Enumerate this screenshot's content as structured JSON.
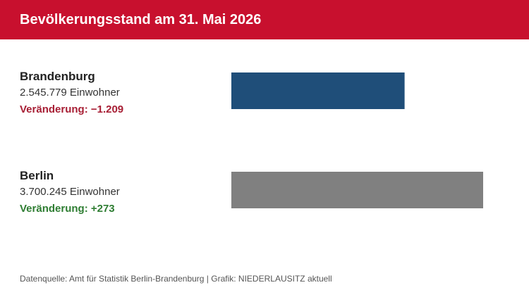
{
  "header": {
    "title": "Bevölkerungsstand am 31. Mai 2026",
    "background_color": "#c8102e",
    "text_color": "#ffffff"
  },
  "chart_data": {
    "type": "bar",
    "orientation": "horizontal",
    "categories": [
      "Brandenburg",
      "Berlin"
    ],
    "values": [
      2545779,
      3700245
    ],
    "xlim": [
      0,
      3700245
    ],
    "grid": false,
    "rows": [
      {
        "name": "Brandenburg",
        "population_text": "2.545.779 Einwohner",
        "change_text": "Veränderung: −1.209",
        "bar_color": "#1f4e79",
        "change_color": "#a71e34"
      },
      {
        "name": "Berlin",
        "population_text": "3.700.245 Einwohner",
        "change_text": "Veränderung: +273",
        "bar_color": "#808080",
        "change_color": "#2e7d32"
      }
    ]
  },
  "footer": {
    "text": "Datenquelle: Amt für Statistik Berlin-Brandenburg  |  Grafik: NIEDERLAUSITZ aktuell"
  }
}
